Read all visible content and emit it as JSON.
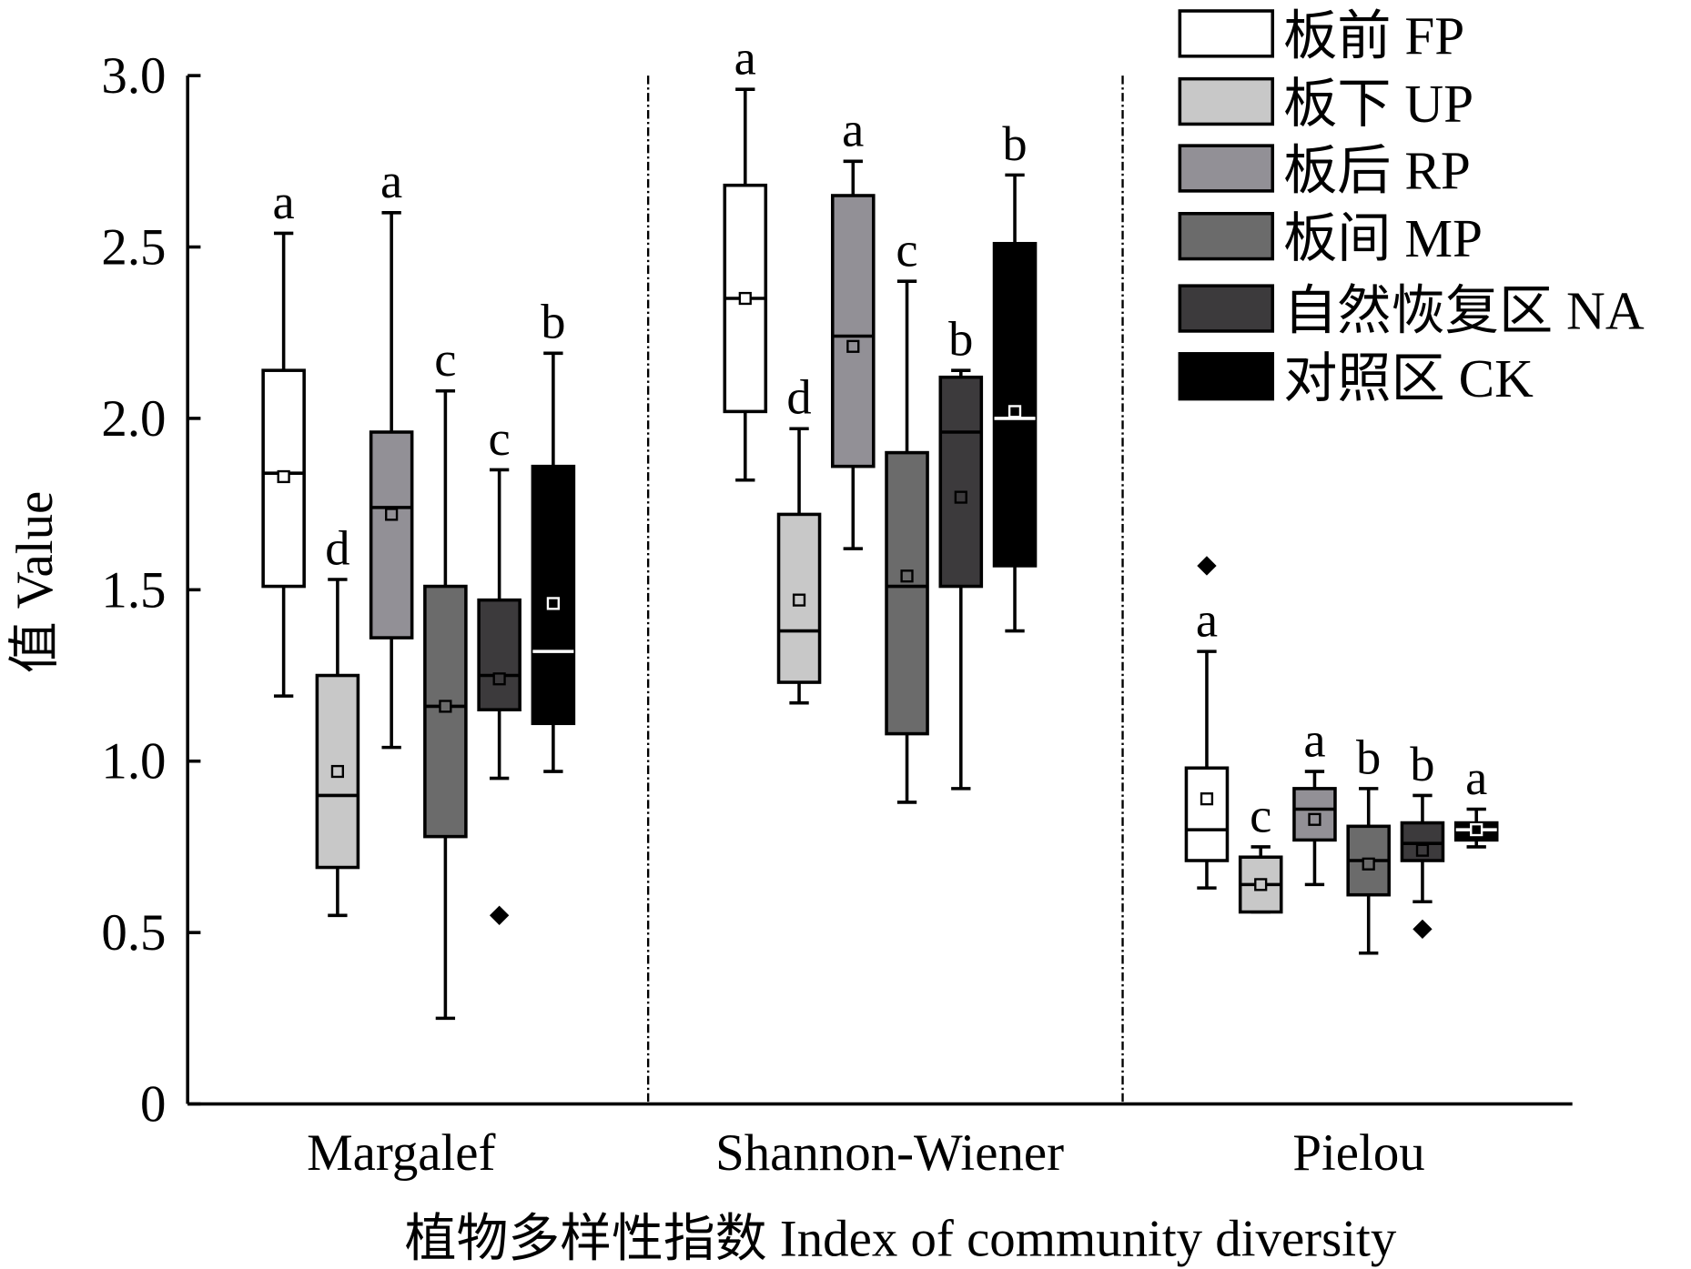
{
  "chart_data": {
    "type": "box",
    "ylabel": "值 Value",
    "xlabel": "植物多样性指数 Index of community diversity",
    "ylim": [
      0,
      3.0
    ],
    "yticks": [
      "0",
      "0.5",
      "1.0",
      "1.5",
      "2.0",
      "2.5",
      "3.0"
    ],
    "categories": [
      "Margalef",
      "Shannon-Wiener",
      "Pielou"
    ],
    "legend_position": "top-right",
    "series": [
      {
        "name": "板前 FP",
        "color": "#ffffff"
      },
      {
        "name": "板下 UP",
        "color": "#c8c8c8"
      },
      {
        "name": "板后 RP",
        "color": "#929096"
      },
      {
        "name": "板间 MP",
        "color": "#6b6b6b"
      },
      {
        "name": "自然恢复区 NA",
        "color": "#3c3a3c"
      },
      {
        "name": "对照区 CK",
        "color": "#000000"
      }
    ],
    "groups": [
      {
        "category": "Margalef",
        "boxes": [
          {
            "min": 1.19,
            "q1": 1.51,
            "median": 1.84,
            "q3": 2.14,
            "max": 2.54,
            "mean": 1.83,
            "letter": "a",
            "outliers": []
          },
          {
            "min": 0.55,
            "q1": 0.69,
            "median": 0.9,
            "q3": 1.25,
            "max": 1.53,
            "mean": 0.97,
            "letter": "d",
            "outliers": []
          },
          {
            "min": 1.04,
            "q1": 1.36,
            "median": 1.74,
            "q3": 1.96,
            "max": 2.6,
            "mean": 1.72,
            "letter": "a",
            "outliers": []
          },
          {
            "min": 0.25,
            "q1": 0.78,
            "median": 1.16,
            "q3": 1.51,
            "max": 2.08,
            "mean": 1.16,
            "letter": "c",
            "outliers": []
          },
          {
            "min": 0.95,
            "q1": 1.15,
            "median": 1.25,
            "q3": 1.47,
            "max": 1.85,
            "mean": 1.24,
            "letter": "c",
            "outliers": [
              0.55
            ]
          },
          {
            "min": 0.97,
            "q1": 1.11,
            "median": 1.32,
            "q3": 1.86,
            "max": 2.19,
            "mean": 1.46,
            "letter": "b",
            "outliers": []
          }
        ]
      },
      {
        "category": "Shannon-Wiener",
        "boxes": [
          {
            "min": 1.82,
            "q1": 2.02,
            "median": 2.35,
            "q3": 2.68,
            "max": 2.96,
            "mean": 2.35,
            "letter": "a",
            "outliers": []
          },
          {
            "min": 1.17,
            "q1": 1.23,
            "median": 1.38,
            "q3": 1.72,
            "max": 1.97,
            "mean": 1.47,
            "letter": "d",
            "outliers": []
          },
          {
            "min": 1.62,
            "q1": 1.86,
            "median": 2.24,
            "q3": 2.65,
            "max": 2.75,
            "mean": 2.21,
            "letter": "a",
            "outliers": []
          },
          {
            "min": 0.88,
            "q1": 1.08,
            "median": 1.51,
            "q3": 1.9,
            "max": 2.4,
            "mean": 1.54,
            "letter": "c",
            "outliers": []
          },
          {
            "min": 0.92,
            "q1": 1.51,
            "median": 1.96,
            "q3": 2.12,
            "max": 2.14,
            "mean": 1.77,
            "letter": "b",
            "outliers": []
          },
          {
            "min": 1.38,
            "q1": 1.57,
            "median": 2.0,
            "q3": 2.51,
            "max": 2.71,
            "mean": 2.02,
            "letter": "b",
            "outliers": []
          }
        ]
      },
      {
        "category": "Pielou",
        "boxes": [
          {
            "min": 0.63,
            "q1": 0.71,
            "median": 0.8,
            "q3": 0.98,
            "max": 1.32,
            "mean": 0.89,
            "letter": "a",
            "outliers": [
              1.57
            ]
          },
          {
            "min": 0.56,
            "q1": 0.56,
            "median": 0.64,
            "q3": 0.72,
            "max": 0.75,
            "mean": 0.64,
            "letter": "c",
            "outliers": []
          },
          {
            "min": 0.64,
            "q1": 0.77,
            "median": 0.86,
            "q3": 0.92,
            "max": 0.97,
            "mean": 0.83,
            "letter": "a",
            "outliers": []
          },
          {
            "min": 0.44,
            "q1": 0.61,
            "median": 0.71,
            "q3": 0.81,
            "max": 0.92,
            "mean": 0.7,
            "letter": "b",
            "outliers": []
          },
          {
            "min": 0.59,
            "q1": 0.71,
            "median": 0.76,
            "q3": 0.82,
            "max": 0.9,
            "mean": 0.74,
            "letter": "b",
            "outliers": [
              0.51
            ]
          },
          {
            "min": 0.75,
            "q1": 0.77,
            "median": 0.8,
            "q3": 0.82,
            "max": 0.86,
            "mean": 0.8,
            "letter": "a",
            "outliers": []
          }
        ]
      }
    ]
  }
}
